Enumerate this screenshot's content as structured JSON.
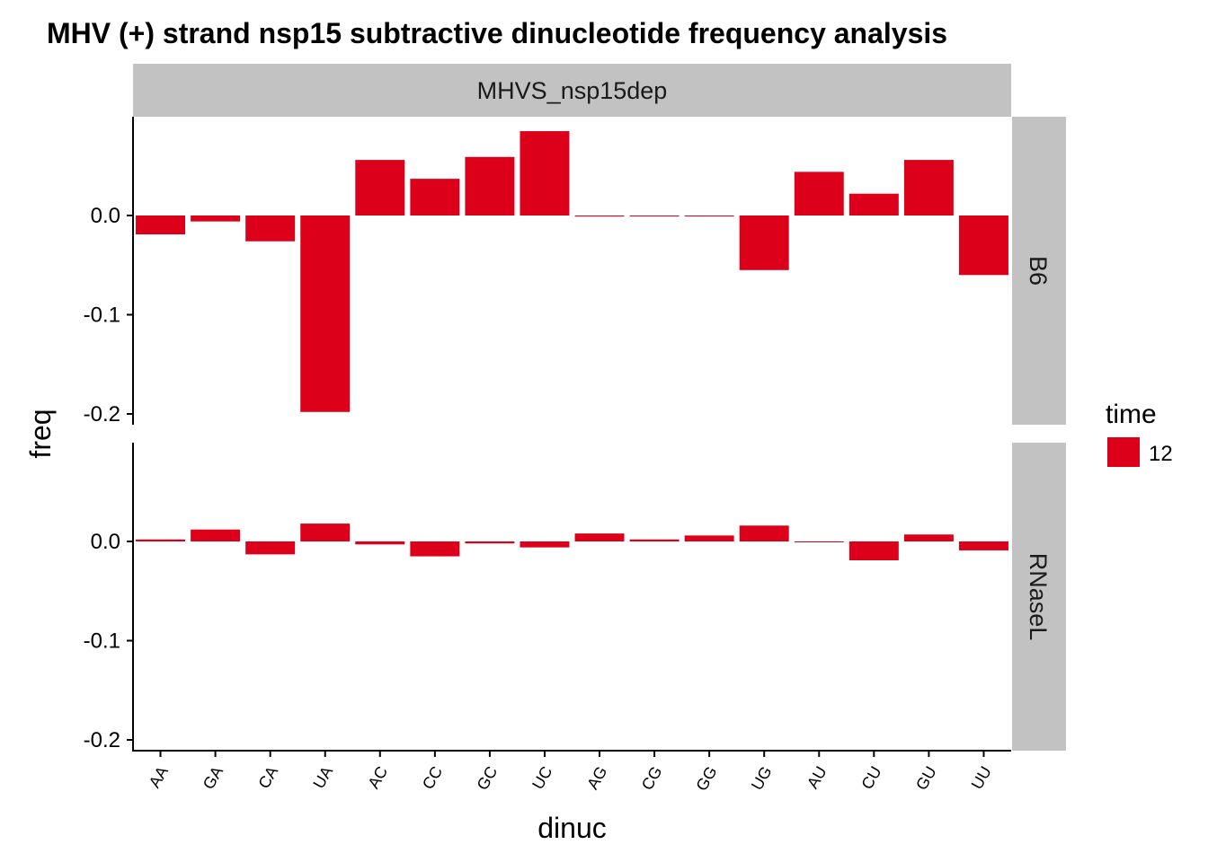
{
  "chart_data": {
    "type": "bar",
    "title": "MHV (+) strand nsp15 subtractive dinucleotide frequency analysis",
    "xlabel": "dinuc",
    "ylabel": "freq",
    "column_facet": "MHVS_nsp15dep",
    "categories": [
      "AA",
      "GA",
      "CA",
      "UA",
      "AC",
      "CC",
      "GC",
      "UC",
      "AG",
      "CG",
      "GG",
      "UG",
      "AU",
      "CU",
      "GU",
      "UU"
    ],
    "facets": [
      {
        "name": "B6",
        "values": [
          -0.019,
          -0.006,
          -0.026,
          -0.198,
          0.056,
          0.037,
          0.059,
          0.085,
          -0.001,
          -0.0005,
          -0.0008,
          -0.055,
          0.044,
          0.022,
          0.056,
          -0.06
        ]
      },
      {
        "name": "RNaseL",
        "values": [
          0.002,
          0.012,
          -0.013,
          0.018,
          -0.003,
          -0.015,
          -0.002,
          -0.006,
          0.008,
          0.002,
          0.006,
          0.016,
          -0.0008,
          -0.019,
          0.007,
          -0.009
        ]
      }
    ],
    "ylim": [
      -0.21,
      0.1
    ],
    "yticks": [
      "0.0",
      "-0.1",
      "-0.2"
    ],
    "ytick_values": [
      0.0,
      -0.1,
      -0.2
    ],
    "legend": {
      "title": "time",
      "entries": [
        "12"
      ],
      "position": "right"
    },
    "colors": {
      "bar": "#dc001a",
      "strip": "#c2c2c2"
    },
    "grid": false
  }
}
